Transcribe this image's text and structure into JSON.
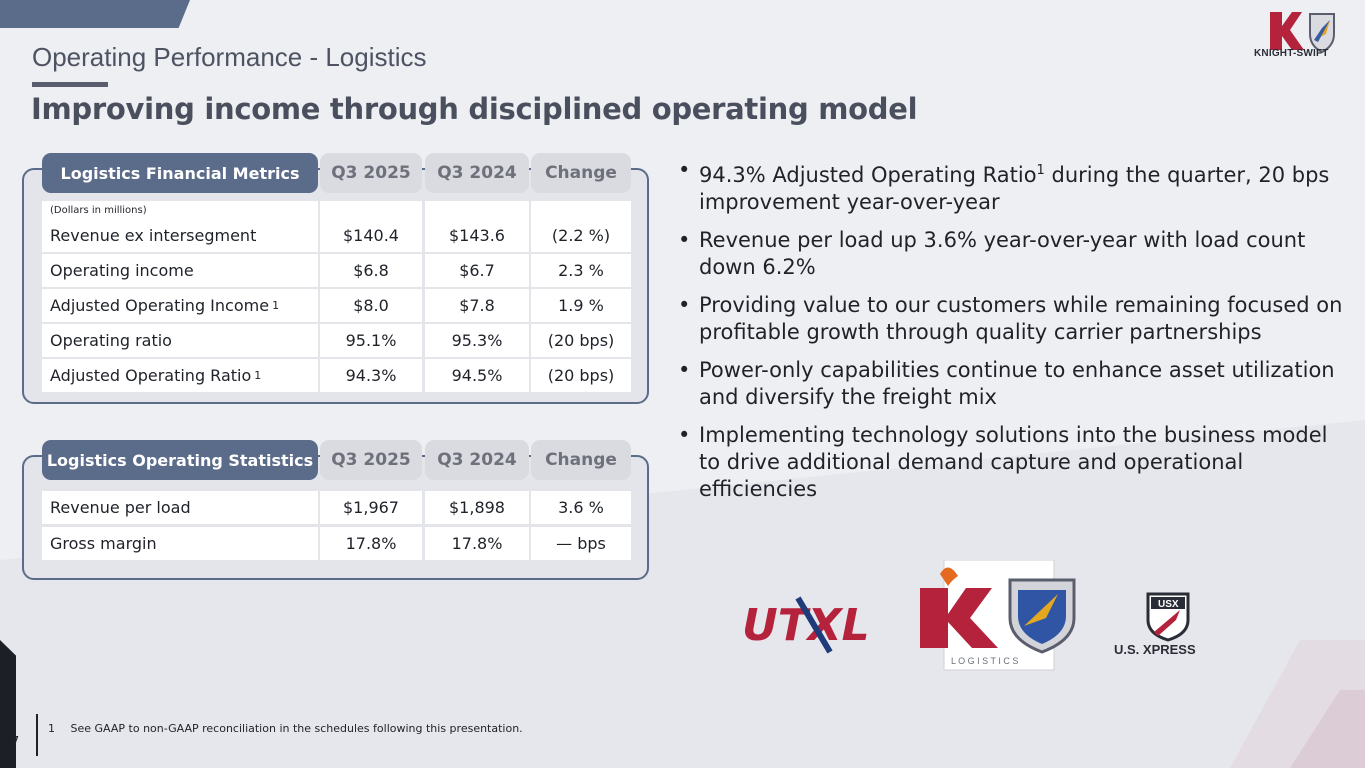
{
  "header": {
    "title": "Operating Performance - Logistics",
    "subtitle": "Improving income through disciplined operating model"
  },
  "brand": {
    "logo_text": "KNIGHT-SWIFT",
    "accent": "#5b6b8a",
    "red": "#b5223b"
  },
  "financial_table": {
    "header": [
      "Logistics Financial Metrics",
      "Q3 2025",
      "Q3 2024",
      "Change"
    ],
    "note": "(Dollars in millions)",
    "rows": [
      {
        "label": "Revenue ex intersegment",
        "sup": "",
        "q3_2025": "$140.4",
        "q3_2024": "$143.6",
        "change": "(2.2 %)"
      },
      {
        "label": "Operating income",
        "sup": "",
        "q3_2025": "$6.8",
        "q3_2024": "$6.7",
        "change": "2.3 %"
      },
      {
        "label": "Adjusted Operating Income",
        "sup": "1",
        "q3_2025": "$8.0",
        "q3_2024": "$7.8",
        "change": "1.9 %"
      },
      {
        "label": "Operating ratio",
        "sup": "",
        "q3_2025": "95.1%",
        "q3_2024": "95.3%",
        "change": "(20 bps)"
      },
      {
        "label": "Adjusted Operating Ratio",
        "sup": "1",
        "q3_2025": "94.3%",
        "q3_2024": "94.5%",
        "change": "(20 bps)"
      }
    ]
  },
  "stats_table": {
    "header": [
      "Logistics Operating Statistics",
      "Q3 2025",
      "Q3 2024",
      "Change"
    ],
    "rows": [
      {
        "label": "Revenue per load",
        "q3_2025": "$1,967",
        "q3_2024": "$1,898",
        "change": "3.6 %"
      },
      {
        "label": "Gross margin",
        "q3_2025": "17.8%",
        "q3_2024": "17.8%",
        "change": "— bps"
      }
    ]
  },
  "bullets": [
    {
      "pre": "94.3% Adjusted Operating Ratio",
      "sup": "1",
      "post": " during the quarter, 20 bps improvement year-over-year"
    },
    {
      "pre": "Revenue per load up 3.6% year-over-year with load count down 6.2%",
      "sup": "",
      "post": ""
    },
    {
      "pre": "Providing value to our customers while remaining focused on profitable growth through quality carrier partnerships",
      "sup": "",
      "post": ""
    },
    {
      "pre": "Power-only capabilities continue to enhance asset utilization and diversify the freight mix",
      "sup": "",
      "post": ""
    },
    {
      "pre": "Implementing technology solutions into the business model to drive additional demand capture and operational efficiencies",
      "sup": "",
      "post": ""
    }
  ],
  "logos": {
    "utxl": "UTXL",
    "klogistics": "L O G I S T I C S",
    "usx_badge": "USX",
    "usx_text": "U.S. XPRESS"
  },
  "footer": {
    "page_number": "7",
    "footnote_number": "1",
    "footnote": "See GAAP to non-GAAP reconciliation in the schedules following this presentation."
  }
}
